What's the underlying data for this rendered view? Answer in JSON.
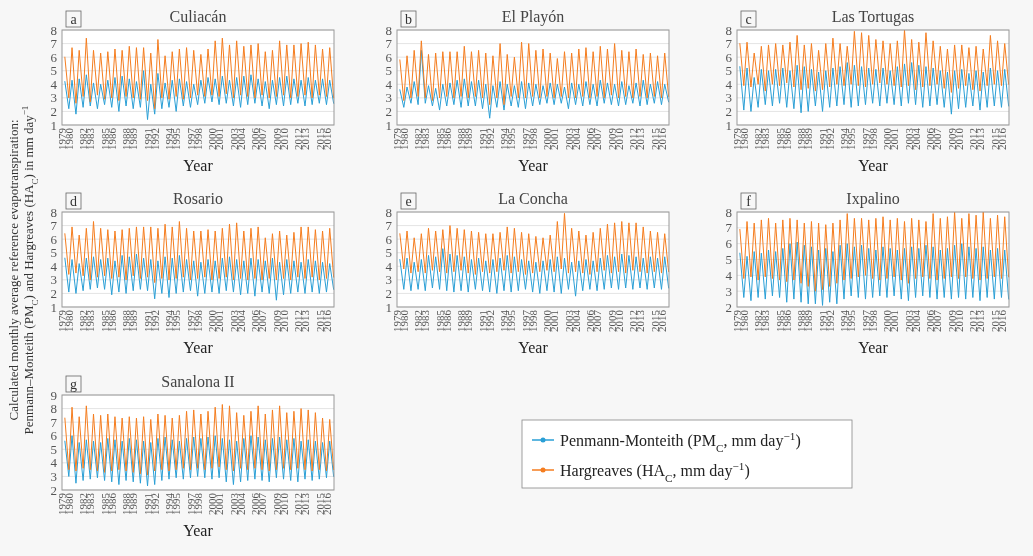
{
  "chart_data": [
    {
      "type": "line",
      "title": "Culiacán",
      "annotations": [
        "a"
      ],
      "xlabel": "Year",
      "ylabel": "Calculated monthly average reference evapotranspiration: Penmann–Monteith (PM$_{C}$) and Hargreaves (HA$_{C}$) in mm day$^{−1}$",
      "xlim": [
        1979,
        2017
      ],
      "ylim": [
        1,
        8
      ],
      "yticks": [
        1,
        2,
        3,
        4,
        5,
        6,
        7,
        8
      ],
      "xticks": [
        1979,
        1980,
        1982,
        1983,
        1985,
        1986,
        1988,
        1989,
        1991,
        1992,
        1994,
        1995,
        1997,
        1998,
        2000,
        2001,
        2003,
        2004,
        2006,
        2007,
        2009,
        2010,
        2012,
        2013,
        2015,
        2016
      ],
      "grid": "y",
      "line_style": "solid",
      "x": [
        1979.4,
        1979.95,
        1980.4,
        1980.95,
        1981.4,
        1981.95,
        1982.4,
        1982.95,
        1983.4,
        1983.95,
        1984.4,
        1984.95,
        1985.4,
        1985.95,
        1986.4,
        1986.95,
        1987.4,
        1987.95,
        1988.4,
        1988.95,
        1989.4,
        1989.95,
        1990.4,
        1990.95,
        1991.4,
        1991.95,
        1992.4,
        1992.95,
        1993.4,
        1993.95,
        1994.4,
        1994.95,
        1995.4,
        1995.95,
        1996.4,
        1996.95,
        1997.4,
        1997.95,
        1998.4,
        1998.95,
        1999.4,
        1999.95,
        2000.4,
        2000.95,
        2001.4,
        2001.95,
        2002.4,
        2002.95,
        2003.4,
        2003.95,
        2004.4,
        2004.95,
        2005.4,
        2005.95,
        2006.4,
        2006.95,
        2007.4,
        2007.95,
        2008.4,
        2008.95,
        2009.4,
        2009.95,
        2010.4,
        2010.95,
        2011.4,
        2011.95,
        2012.4,
        2012.95,
        2013.4,
        2013.95,
        2014.4,
        2014.95,
        2015.4,
        2015.95,
        2016.4,
        2016.95
      ],
      "series": [
        {
          "color": "#2a9fd6",
          "values": [
            4.2,
            2.2,
            4.3,
            1.8,
            4.4,
            2.3,
            4.7,
            2.4,
            4.1,
            2.2,
            4.0,
            2.5,
            4.3,
            2.3,
            4.5,
            2.0,
            4.6,
            2.4,
            4.4,
            2.2,
            4.2,
            2.3,
            5.0,
            1.4,
            4.0,
            1.8,
            4.8,
            2.2,
            4.1,
            2.3,
            4.3,
            2.0,
            4.4,
            2.4,
            4.2,
            2.3,
            4.0,
            2.5,
            4.3,
            2.6,
            4.5,
            2.7,
            4.4,
            2.5,
            4.6,
            2.6,
            4.3,
            2.4,
            4.5,
            2.3,
            4.6,
            2.5,
            4.7,
            2.6,
            4.4,
            2.4,
            4.2,
            2.2,
            4.3,
            2.5,
            4.5,
            2.4,
            4.6,
            2.5,
            4.4,
            2.6,
            4.3,
            2.4,
            4.5,
            2.5,
            4.3,
            2.6,
            4.4,
            2.5,
            4.3,
            2.6
          ]
        },
        {
          "color": "#f57d1f",
          "values": [
            6.0,
            3.0,
            6.7,
            2.6,
            6.5,
            3.1,
            7.4,
            2.7,
            6.5,
            3.2,
            6.3,
            2.9,
            6.4,
            3.0,
            6.6,
            2.8,
            6.5,
            3.1,
            6.8,
            3.0,
            6.7,
            2.9,
            6.7,
            2.8,
            6.3,
            2.2,
            7.3,
            3.0,
            6.1,
            2.9,
            6.4,
            3.1,
            6.6,
            2.9,
            6.7,
            3.0,
            6.5,
            3.2,
            6.2,
            3.1,
            6.6,
            3.2,
            7.2,
            3.1,
            7.4,
            3.3,
            6.9,
            3.0,
            7.2,
            3.2,
            6.8,
            3.1,
            6.9,
            3.0,
            7.0,
            3.2,
            6.4,
            3.0,
            6.5,
            3.1,
            7.2,
            3.2,
            6.9,
            3.0,
            6.9,
            3.1,
            7.0,
            3.2,
            7.1,
            3.0,
            6.9,
            3.2,
            6.6,
            3.1,
            6.7,
            3.0
          ]
        }
      ]
    },
    {
      "type": "line",
      "title": "El Playón",
      "annotations": [
        "b"
      ],
      "xlabel": "Year",
      "xlim": [
        1979,
        2017
      ],
      "ylim": [
        1,
        8
      ],
      "yticks": [
        1,
        2,
        3,
        4,
        5,
        6,
        7,
        8
      ],
      "xticks": [
        1979,
        1980,
        1982,
        1983,
        1985,
        1986,
        1988,
        1989,
        1991,
        1992,
        1994,
        1995,
        1997,
        1998,
        2000,
        2001,
        2003,
        2004,
        2006,
        2007,
        2009,
        2010,
        2012,
        2013,
        2015,
        2016
      ],
      "grid": "y",
      "line_style": "solid",
      "x": [
        1979.4,
        1979.95,
        1980.4,
        1980.95,
        1981.4,
        1981.95,
        1982.4,
        1982.95,
        1983.4,
        1983.95,
        1984.4,
        1984.95,
        1985.4,
        1985.95,
        1986.4,
        1986.95,
        1987.4,
        1987.95,
        1988.4,
        1988.95,
        1989.4,
        1989.95,
        1990.4,
        1990.95,
        1991.4,
        1991.95,
        1992.4,
        1992.95,
        1993.4,
        1993.95,
        1994.4,
        1994.95,
        1995.4,
        1995.95,
        1996.4,
        1996.95,
        1997.4,
        1997.95,
        1998.4,
        1998.95,
        1999.4,
        1999.95,
        2000.4,
        2000.95,
        2001.4,
        2001.95,
        2002.4,
        2002.95,
        2003.4,
        2003.95,
        2004.4,
        2004.95,
        2005.4,
        2005.95,
        2006.4,
        2006.95,
        2007.4,
        2007.95,
        2008.4,
        2008.95,
        2009.4,
        2009.95,
        2010.4,
        2010.95,
        2011.4,
        2011.95,
        2012.4,
        2012.95,
        2013.4,
        2013.95,
        2014.4,
        2014.95,
        2015.4,
        2015.95,
        2016.4,
        2016.95
      ],
      "series": [
        {
          "color": "#2a9fd6",
          "values": [
            3.6,
            2.3,
            3.8,
            2.6,
            4.2,
            2.5,
            6.5,
            2.6,
            3.9,
            2.4,
            3.7,
            2.1,
            4.0,
            2.4,
            4.1,
            2.5,
            4.3,
            2.3,
            4.4,
            2.4,
            4.2,
            2.4,
            4.3,
            2.2,
            4.0,
            1.5,
            3.9,
            2.3,
            4.2,
            2.1,
            4.0,
            2.4,
            3.9,
            2.3,
            4.2,
            2.2,
            4.1,
            2.4,
            4.0,
            2.5,
            3.9,
            2.6,
            4.1,
            2.5,
            4.0,
            2.6,
            3.8,
            2.2,
            4.1,
            2.5,
            4.0,
            2.4,
            4.2,
            2.5,
            4.0,
            2.4,
            4.3,
            2.6,
            4.1,
            2.5,
            4.0,
            2.4,
            4.2,
            2.5,
            3.9,
            2.6,
            4.1,
            2.4,
            4.3,
            2.5,
            4.0,
            2.6,
            4.2,
            2.5,
            4.0,
            2.7
          ]
        },
        {
          "color": "#f57d1f",
          "values": [
            5.8,
            2.8,
            6.1,
            3.0,
            6.5,
            3.1,
            7.2,
            3.0,
            6.2,
            2.8,
            6.3,
            3.0,
            6.4,
            3.1,
            6.4,
            3.0,
            6.4,
            3.1,
            6.8,
            3.0,
            6.4,
            3.1,
            6.5,
            3.0,
            6.3,
            2.5,
            6.1,
            3.0,
            7.0,
            2.5,
            6.2,
            3.1,
            6.0,
            3.0,
            7.1,
            3.0,
            7.0,
            3.1,
            6.5,
            3.0,
            6.6,
            3.1,
            6.3,
            3.0,
            5.9,
            3.1,
            6.4,
            3.0,
            6.3,
            3.0,
            6.6,
            3.1,
            6.7,
            3.0,
            6.4,
            3.1,
            6.8,
            3.0,
            6.6,
            3.2,
            7.0,
            3.0,
            6.5,
            3.1,
            6.4,
            3.0,
            6.6,
            3.1,
            6.2,
            3.0,
            6.3,
            3.1,
            6.1,
            3.0,
            6.3,
            3.1
          ]
        }
      ]
    },
    {
      "type": "line",
      "title": "Las Tortugas",
      "annotations": [
        "c"
      ],
      "xlabel": "Year",
      "xlim": [
        1979,
        2017
      ],
      "ylim": [
        1,
        8
      ],
      "yticks": [
        1,
        2,
        3,
        4,
        5,
        6,
        7,
        8
      ],
      "xticks": [
        1979,
        1980,
        1982,
        1983,
        1985,
        1986,
        1988,
        1989,
        1991,
        1992,
        1994,
        1995,
        1997,
        1998,
        2000,
        2001,
        2003,
        2004,
        2006,
        2007,
        2009,
        2010,
        2012,
        2013,
        2015,
        2016
      ],
      "grid": "y",
      "line_style": "solid",
      "x": [
        1979.4,
        1979.95,
        1980.4,
        1980.95,
        1981.4,
        1981.95,
        1982.4,
        1982.95,
        1983.4,
        1983.95,
        1984.4,
        1984.95,
        1985.4,
        1985.95,
        1986.4,
        1986.95,
        1987.4,
        1987.95,
        1988.4,
        1988.95,
        1989.4,
        1989.95,
        1990.4,
        1990.95,
        1991.4,
        1991.95,
        1992.4,
        1992.95,
        1993.4,
        1993.95,
        1994.4,
        1994.95,
        1995.4,
        1995.95,
        1996.4,
        1996.95,
        1997.4,
        1997.95,
        1998.4,
        1998.95,
        1999.4,
        1999.95,
        2000.4,
        2000.95,
        2001.4,
        2001.95,
        2002.4,
        2002.95,
        2003.4,
        2003.95,
        2004.4,
        2004.95,
        2005.4,
        2005.95,
        2006.4,
        2006.95,
        2007.4,
        2007.95,
        2008.4,
        2008.95,
        2009.4,
        2009.95,
        2010.4,
        2010.95,
        2011.4,
        2011.95,
        2012.4,
        2012.95,
        2013.4,
        2013.95,
        2014.4,
        2014.95,
        2015.4,
        2015.95,
        2016.4,
        2016.95
      ],
      "series": [
        {
          "color": "#2a9fd6",
          "values": [
            5.3,
            2.1,
            5.2,
            2.0,
            4.5,
            2.3,
            5.1,
            2.5,
            5.0,
            2.4,
            5.1,
            2.6,
            5.2,
            2.3,
            5.0,
            2.2,
            5.4,
            1.9,
            5.3,
            2.0,
            5.1,
            2.4,
            4.9,
            2.0,
            5.0,
            2.3,
            5.2,
            2.4,
            5.3,
            2.5,
            5.6,
            2.3,
            5.4,
            2.4,
            5.3,
            2.5,
            5.2,
            2.6,
            5.1,
            2.4,
            5.2,
            2.6,
            5.0,
            2.5,
            5.3,
            2.4,
            5.5,
            2.6,
            5.6,
            2.5,
            5.4,
            2.3,
            5.3,
            2.4,
            5.2,
            2.5,
            5.0,
            2.3,
            4.9,
            1.8,
            5.0,
            2.2,
            5.1,
            2.3,
            4.8,
            2.4,
            5.0,
            2.1,
            4.9,
            2.3,
            5.2,
            2.4,
            5.0,
            2.3,
            5.1,
            2.4
          ]
        },
        {
          "color": "#f57d1f",
          "values": [
            7.0,
            3.9,
            7.1,
            3.8,
            6.3,
            4.0,
            6.8,
            3.5,
            6.9,
            4.0,
            7.0,
            3.9,
            6.9,
            4.1,
            7.1,
            3.8,
            7.6,
            3.6,
            6.9,
            3.7,
            7.0,
            3.5,
            6.5,
            3.6,
            7.0,
            3.8,
            7.4,
            4.0,
            7.0,
            3.9,
            6.8,
            4.0,
            7.9,
            3.9,
            7.8,
            3.8,
            7.6,
            4.0,
            7.3,
            4.1,
            7.2,
            4.0,
            7.0,
            3.9,
            7.2,
            3.8,
            8.0,
            3.9,
            7.3,
            3.6,
            7.1,
            3.8,
            7.8,
            3.9,
            7.2,
            4.0,
            6.8,
            3.7,
            6.6,
            3.4,
            6.9,
            3.7,
            6.9,
            3.9,
            6.7,
            3.6,
            6.8,
            3.5,
            6.6,
            3.9,
            7.6,
            4.0,
            7.2,
            3.9,
            7.0,
            4.0
          ]
        }
      ]
    },
    {
      "type": "line",
      "title": "Rosario",
      "annotations": [
        "d"
      ],
      "xlabel": "Year",
      "xlim": [
        1979,
        2017
      ],
      "ylim": [
        1,
        8
      ],
      "yticks": [
        1,
        2,
        3,
        4,
        5,
        6,
        7,
        8
      ],
      "xticks": [
        1979,
        1980,
        1982,
        1983,
        1985,
        1986,
        1988,
        1989,
        1991,
        1992,
        1994,
        1995,
        1997,
        1998,
        2000,
        2001,
        2003,
        2004,
        2006,
        2007,
        2009,
        2010,
        2012,
        2013,
        2015,
        2016
      ],
      "grid": "y",
      "line_style": "solid",
      "x": [
        1979.4,
        1979.95,
        1980.4,
        1980.95,
        1981.4,
        1981.95,
        1982.4,
        1982.95,
        1983.4,
        1983.95,
        1984.4,
        1984.95,
        1985.4,
        1985.95,
        1986.4,
        1986.95,
        1987.4,
        1987.95,
        1988.4,
        1988.95,
        1989.4,
        1989.95,
        1990.4,
        1990.95,
        1991.4,
        1991.95,
        1992.4,
        1992.95,
        1993.4,
        1993.95,
        1994.4,
        1994.95,
        1995.4,
        1995.95,
        1996.4,
        1996.95,
        1997.4,
        1997.95,
        1998.4,
        1998.95,
        1999.4,
        1999.95,
        2000.4,
        2000.95,
        2001.4,
        2001.95,
        2002.4,
        2002.95,
        2003.4,
        2003.95,
        2004.4,
        2004.95,
        2005.4,
        2005.95,
        2006.4,
        2006.95,
        2007.4,
        2007.95,
        2008.4,
        2008.95,
        2009.4,
        2009.95,
        2010.4,
        2010.95,
        2011.4,
        2011.95,
        2012.4,
        2012.95,
        2013.4,
        2013.95,
        2014.4,
        2014.95,
        2015.4,
        2015.95,
        2016.4,
        2016.95
      ],
      "series": [
        {
          "color": "#2a9fd6",
          "values": [
            4.6,
            2.1,
            4.5,
            2.0,
            4.2,
            2.2,
            4.6,
            2.3,
            4.7,
            2.4,
            4.5,
            2.3,
            4.6,
            1.9,
            4.4,
            2.1,
            4.8,
            2.0,
            4.7,
            2.2,
            4.9,
            2.3,
            4.6,
            2.2,
            4.5,
            1.6,
            4.4,
            2.0,
            4.7,
            1.7,
            4.6,
            2.0,
            4.8,
            2.1,
            4.5,
            2.2,
            4.4,
            1.8,
            4.3,
            2.0,
            4.5,
            2.1,
            4.4,
            2.0,
            4.6,
            2.2,
            4.7,
            2.1,
            4.5,
            1.9,
            4.4,
            2.0,
            4.6,
            1.8,
            4.5,
            2.1,
            4.4,
            2.0,
            4.6,
            1.5,
            4.3,
            1.9,
            4.5,
            2.0,
            4.4,
            2.1,
            4.3,
            2.0,
            4.5,
            2.1,
            4.4,
            2.0,
            4.3,
            2.1,
            4.2,
            2.3
          ]
        },
        {
          "color": "#f57d1f",
          "values": [
            6.4,
            3.4,
            6.9,
            3.5,
            6.3,
            3.3,
            6.8,
            3.0,
            7.3,
            3.2,
            6.8,
            3.3,
            6.7,
            3.1,
            6.6,
            3.2,
            6.7,
            3.0,
            6.8,
            3.3,
            6.9,
            3.1,
            6.9,
            3.2,
            6.9,
            2.8,
            6.8,
            3.1,
            7.1,
            3.0,
            6.9,
            3.1,
            7.3,
            3.2,
            6.8,
            3.0,
            6.6,
            3.1,
            6.6,
            3.2,
            6.7,
            3.0,
            6.6,
            3.1,
            6.8,
            3.2,
            7.1,
            3.0,
            7.2,
            3.1,
            6.6,
            3.0,
            6.8,
            3.1,
            6.9,
            3.0,
            6.1,
            3.1,
            6.4,
            3.0,
            6.6,
            3.1,
            6.3,
            3.0,
            6.5,
            3.2,
            6.9,
            3.1,
            6.9,
            3.2,
            6.7,
            3.0,
            6.6,
            3.1,
            6.8,
            3.2
          ]
        }
      ]
    },
    {
      "type": "line",
      "title": "La Concha",
      "annotations": [
        "e"
      ],
      "xlabel": "Year",
      "xlim": [
        1979,
        2017
      ],
      "ylim": [
        1,
        8
      ],
      "yticks": [
        1,
        2,
        3,
        4,
        5,
        6,
        7,
        8
      ],
      "xticks": [
        1979,
        1980,
        1982,
        1983,
        1985,
        1986,
        1988,
        1989,
        1991,
        1992,
        1994,
        1995,
        1997,
        1998,
        2000,
        2001,
        2003,
        2004,
        2006,
        2007,
        2009,
        2010,
        2012,
        2013,
        2015,
        2016
      ],
      "grid": "y",
      "line_style": "solid",
      "x": [
        1979.4,
        1979.95,
        1980.4,
        1980.95,
        1981.4,
        1981.95,
        1982.4,
        1982.95,
        1983.4,
        1983.95,
        1984.4,
        1984.95,
        1985.4,
        1985.95,
        1986.4,
        1986.95,
        1987.4,
        1987.95,
        1988.4,
        1988.95,
        1989.4,
        1989.95,
        1990.4,
        1990.95,
        1991.4,
        1991.95,
        1992.4,
        1992.95,
        1993.4,
        1993.95,
        1994.4,
        1994.95,
        1995.4,
        1995.95,
        1996.4,
        1996.95,
        1997.4,
        1997.95,
        1998.4,
        1998.95,
        1999.4,
        1999.95,
        2000.4,
        2000.95,
        2001.4,
        2001.95,
        2002.4,
        2002.95,
        2003.4,
        2003.95,
        2004.4,
        2004.95,
        2005.4,
        2005.95,
        2006.4,
        2006.95,
        2007.4,
        2007.95,
        2008.4,
        2008.95,
        2009.4,
        2009.95,
        2010.4,
        2010.95,
        2011.4,
        2011.95,
        2012.4,
        2012.95,
        2013.4,
        2013.95,
        2014.4,
        2014.95,
        2015.4,
        2015.95,
        2016.4,
        2016.95
      ],
      "series": [
        {
          "color": "#2a9fd6",
          "values": [
            4.5,
            2.3,
            4.6,
            2.2,
            4.3,
            2.3,
            4.5,
            2.2,
            4.8,
            2.4,
            4.7,
            2.3,
            5.3,
            2.2,
            4.9,
            2.1,
            4.8,
            2.2,
            4.7,
            2.1,
            4.5,
            2.3,
            4.6,
            2.2,
            4.4,
            2.1,
            4.5,
            2.0,
            4.6,
            2.2,
            4.8,
            2.1,
            4.7,
            2.2,
            4.5,
            2.3,
            4.4,
            2.1,
            4.3,
            2.0,
            4.4,
            2.2,
            4.5,
            2.1,
            4.7,
            2.0,
            4.6,
            2.3,
            4.3,
            1.8,
            4.4,
            2.2,
            4.5,
            2.3,
            4.4,
            2.2,
            4.6,
            2.3,
            4.8,
            2.4,
            4.7,
            2.3,
            4.9,
            2.4,
            4.8,
            2.3,
            4.7,
            2.4,
            4.6,
            2.3,
            4.7,
            2.4,
            4.6,
            2.3,
            4.7,
            2.4
          ]
        },
        {
          "color": "#f57d1f",
          "values": [
            6.4,
            3.8,
            6.6,
            3.5,
            6.1,
            3.6,
            6.4,
            3.5,
            6.8,
            3.7,
            6.6,
            3.6,
            6.7,
            3.5,
            7.0,
            3.6,
            6.8,
            3.7,
            6.7,
            3.5,
            6.6,
            3.4,
            6.5,
            3.6,
            6.4,
            3.5,
            6.4,
            3.6,
            6.5,
            3.7,
            6.9,
            3.5,
            6.8,
            3.6,
            6.5,
            3.4,
            6.4,
            3.5,
            6.2,
            3.6,
            6.1,
            3.7,
            6.3,
            3.6,
            7.3,
            3.8,
            7.9,
            3.5,
            6.8,
            3.6,
            6.6,
            3.5,
            6.3,
            3.4,
            6.5,
            3.6,
            6.8,
            3.7,
            7.1,
            3.5,
            7.2,
            3.6,
            7.3,
            3.5,
            7.2,
            3.7,
            7.2,
            3.6,
            6.9,
            3.5,
            6.6,
            3.6,
            6.5,
            3.5,
            6.4,
            3.6
          ]
        }
      ]
    },
    {
      "type": "line",
      "title": "Ixpalino",
      "annotations": [
        "f"
      ],
      "xlabel": "Year",
      "xlim": [
        1979,
        2017
      ],
      "ylim": [
        2,
        8
      ],
      "yticks": [
        2,
        3,
        4,
        5,
        6,
        7,
        8
      ],
      "xticks": [
        1979,
        1980,
        1982,
        1983,
        1985,
        1986,
        1988,
        1989,
        1991,
        1992,
        1994,
        1995,
        1997,
        1998,
        2000,
        2001,
        2003,
        2004,
        2006,
        2007,
        2009,
        2010,
        2012,
        2013,
        2015,
        2016
      ],
      "grid": "y",
      "line_style": "solid",
      "x": [
        1979.4,
        1979.95,
        1980.4,
        1980.95,
        1981.4,
        1981.95,
        1982.4,
        1982.95,
        1983.4,
        1983.95,
        1984.4,
        1984.95,
        1985.4,
        1985.95,
        1986.4,
        1986.95,
        1987.4,
        1987.95,
        1988.4,
        1988.95,
        1989.4,
        1989.95,
        1990.4,
        1990.95,
        1991.4,
        1991.95,
        1992.4,
        1992.95,
        1993.4,
        1993.95,
        1994.4,
        1994.95,
        1995.4,
        1995.95,
        1996.4,
        1996.95,
        1997.4,
        1997.95,
        1998.4,
        1998.95,
        1999.4,
        1999.95,
        2000.4,
        2000.95,
        2001.4,
        2001.95,
        2002.4,
        2002.95,
        2003.4,
        2003.95,
        2004.4,
        2004.95,
        2005.4,
        2005.95,
        2006.4,
        2006.95,
        2007.4,
        2007.95,
        2008.4,
        2008.95,
        2009.4,
        2009.95,
        2010.4,
        2010.95,
        2011.4,
        2011.95,
        2012.4,
        2012.95,
        2013.4,
        2013.95,
        2014.4,
        2014.95,
        2015.4,
        2015.95,
        2016.4,
        2016.95
      ],
      "series": [
        {
          "color": "#2a9fd6",
          "values": [
            5.4,
            2.6,
            5.2,
            2.4,
            5.5,
            2.6,
            5.4,
            2.5,
            5.6,
            2.7,
            5.5,
            2.6,
            5.7,
            2.3,
            6.0,
            2.5,
            6.1,
            2.3,
            5.9,
            2.2,
            5.8,
            2.2,
            5.6,
            2.1,
            5.7,
            2.3,
            5.5,
            2.2,
            5.9,
            2.5,
            6.0,
            2.7,
            5.8,
            2.6,
            5.9,
            2.5,
            5.7,
            2.6,
            5.6,
            2.7,
            5.8,
            2.6,
            5.7,
            2.7,
            5.6,
            2.5,
            5.7,
            2.4,
            5.8,
            2.6,
            5.7,
            2.7,
            5.9,
            2.6,
            5.8,
            2.5,
            5.6,
            2.6,
            5.7,
            2.5,
            5.9,
            2.6,
            6.0,
            2.5,
            5.8,
            2.6,
            5.7,
            2.4,
            5.8,
            2.6,
            5.6,
            2.5,
            5.7,
            2.6,
            5.6,
            2.5
          ]
        },
        {
          "color": "#f57d1f",
          "values": [
            6.9,
            3.8,
            7.4,
            3.9,
            7.3,
            3.7,
            7.5,
            3.9,
            7.6,
            3.8,
            7.3,
            3.7,
            7.5,
            3.6,
            7.6,
            3.7,
            7.5,
            3.5,
            7.3,
            3.3,
            7.4,
            3.0,
            7.3,
            3.1,
            7.2,
            3.3,
            7.3,
            3.5,
            7.5,
            3.7,
            7.9,
            3.8,
            7.6,
            3.9,
            7.6,
            4.0,
            7.5,
            3.8,
            7.6,
            3.7,
            7.7,
            3.8,
            7.5,
            3.9,
            7.6,
            3.7,
            7.4,
            3.5,
            7.6,
            3.8,
            7.5,
            3.9,
            7.4,
            3.8,
            7.9,
            3.7,
            7.6,
            3.8,
            7.7,
            3.9,
            8.0,
            3.8,
            7.6,
            3.9,
            7.9,
            3.8,
            7.8,
            3.7,
            8.0,
            3.8,
            7.6,
            3.9,
            7.8,
            3.8,
            7.7,
            3.9
          ]
        }
      ]
    },
    {
      "type": "line",
      "title": "Sanalona II",
      "annotations": [
        "g"
      ],
      "xlabel": "Year",
      "xlim": [
        1979,
        2017
      ],
      "ylim": [
        2,
        9
      ],
      "yticks": [
        2,
        3,
        4,
        5,
        6,
        7,
        8,
        9
      ],
      "xticks": [
        1979,
        1980,
        1982,
        1983,
        1985,
        1986,
        1988,
        1989,
        1991,
        1992,
        1994,
        1995,
        1997,
        1998,
        2000,
        2001,
        2003,
        2004,
        2006,
        2007,
        2009,
        2010,
        2012,
        2013,
        2015,
        2016
      ],
      "grid": "y",
      "line_style": "solid",
      "legend": "right",
      "x": [
        1979.4,
        1979.95,
        1980.4,
        1980.95,
        1981.4,
        1981.95,
        1982.4,
        1982.95,
        1983.4,
        1983.95,
        1984.4,
        1984.95,
        1985.4,
        1985.95,
        1986.4,
        1986.95,
        1987.4,
        1987.95,
        1988.4,
        1988.95,
        1989.4,
        1989.95,
        1990.4,
        1990.95,
        1991.4,
        1991.95,
        1992.4,
        1992.95,
        1993.4,
        1993.95,
        1994.4,
        1994.95,
        1995.4,
        1995.95,
        1996.4,
        1996.95,
        1997.4,
        1997.95,
        1998.4,
        1998.95,
        1999.4,
        1999.95,
        2000.4,
        2000.95,
        2001.4,
        2001.95,
        2002.4,
        2002.95,
        2003.4,
        2003.95,
        2004.4,
        2004.95,
        2005.4,
        2005.95,
        2006.4,
        2006.95,
        2007.4,
        2007.95,
        2008.4,
        2008.95,
        2009.4,
        2009.95,
        2010.4,
        2010.95,
        2011.4,
        2011.95,
        2012.4,
        2012.95,
        2013.4,
        2013.95,
        2014.4,
        2014.95,
        2015.4,
        2015.95,
        2016.4,
        2016.95
      ],
      "series": [
        {
          "name": "Penmann-Monteith (PM$_{C}$, mm day$^{−1}$)",
          "color": "#2a9fd6",
          "values": [
            5.6,
            3.0,
            6.0,
            2.5,
            5.5,
            2.7,
            5.7,
            2.8,
            5.6,
            2.9,
            5.5,
            2.7,
            5.8,
            2.6,
            5.7,
            2.4,
            5.6,
            2.7,
            5.8,
            2.6,
            5.7,
            2.5,
            5.6,
            2.3,
            5.5,
            2.4,
            5.8,
            2.7,
            5.9,
            2.8,
            5.7,
            2.9,
            5.6,
            2.8,
            5.8,
            2.9,
            5.9,
            3.0,
            5.8,
            2.9,
            5.9,
            2.8,
            6.0,
            2.9,
            5.8,
            2.6,
            5.7,
            2.4,
            5.6,
            2.6,
            5.8,
            2.7,
            6.0,
            2.8,
            5.9,
            2.7,
            5.7,
            2.6,
            5.8,
            2.9,
            5.9,
            2.8,
            5.7,
            2.7,
            5.8,
            2.6,
            5.6,
            2.8,
            5.7,
            2.7,
            5.6,
            2.8,
            5.5,
            2.9,
            5.6,
            3.0
          ]
        },
        {
          "name": "Hargreaves (HA$_{C}$, mm day$^{−1}$)",
          "color": "#f57d1f",
          "values": [
            7.3,
            3.5,
            8.1,
            3.4,
            7.4,
            3.6,
            8.2,
            3.5,
            7.6,
            3.4,
            7.5,
            3.3,
            7.6,
            3.4,
            7.4,
            3.5,
            7.3,
            3.4,
            7.4,
            3.3,
            7.3,
            3.2,
            7.4,
            3.1,
            7.2,
            3.4,
            7.6,
            3.5,
            7.5,
            3.4,
            7.3,
            3.5,
            7.5,
            3.6,
            7.8,
            3.5,
            7.9,
            3.6,
            7.6,
            3.5,
            7.8,
            3.6,
            8.1,
            3.7,
            8.3,
            3.5,
            8.2,
            3.4,
            7.7,
            3.6,
            7.5,
            3.5,
            7.8,
            3.6,
            8.2,
            3.5,
            7.6,
            3.4,
            7.9,
            3.5,
            8.2,
            3.6,
            7.7,
            3.5,
            7.8,
            3.6,
            8.0,
            3.5,
            7.9,
            3.4,
            7.7,
            3.5,
            7.3,
            3.4,
            7.2,
            3.5
          ]
        }
      ]
    }
  ]
}
